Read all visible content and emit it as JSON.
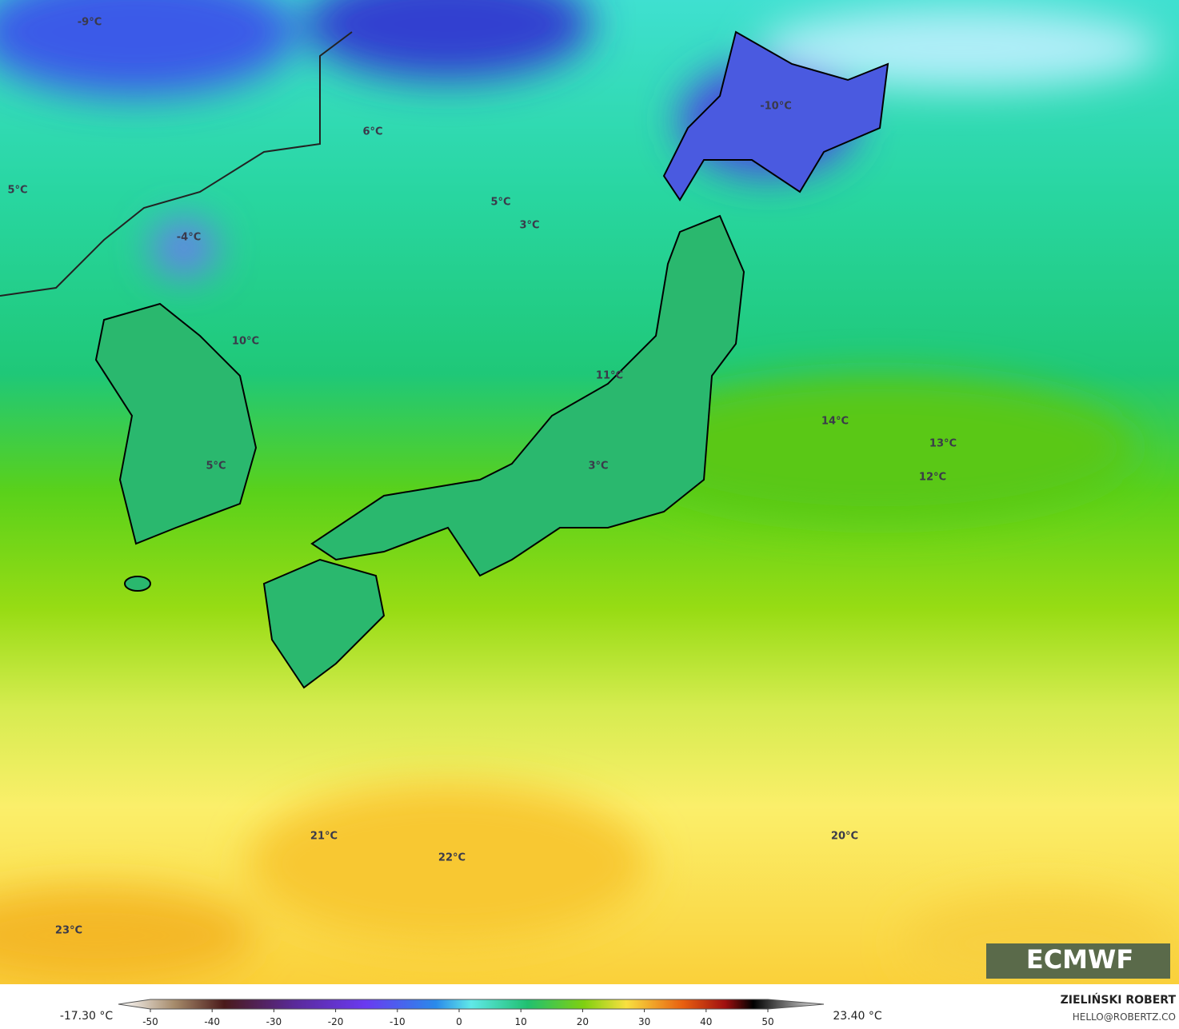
{
  "map": {
    "temperature_labels": [
      "-9°C",
      "6°C",
      "5°C",
      "-4°C",
      "5°C",
      "3°C",
      "-10°C",
      "10°C",
      "11°C",
      "14°C",
      "13°C",
      "12°C",
      "5°C",
      "3°C",
      "20°C",
      "21°C",
      "22°C",
      "23°C"
    ],
    "logo": "ECMWF"
  },
  "colorbar": {
    "min_label": "-17.30 °C",
    "max_label": "23.40 °C",
    "ticks": [
      -50,
      -40,
      -30,
      -20,
      -10,
      0,
      10,
      20,
      30,
      40,
      50
    ]
  },
  "credit": {
    "author": "ZIELIŃSKI ROBERT",
    "email": "HELLO@ROBERTZ.CO"
  }
}
